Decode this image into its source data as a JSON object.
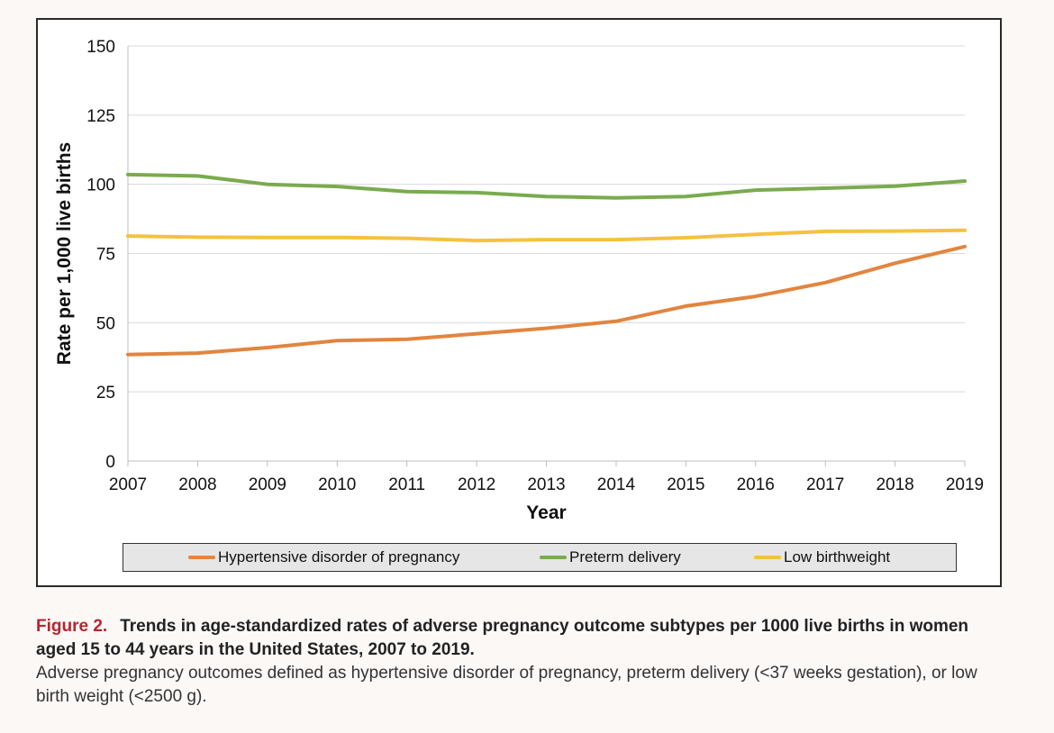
{
  "chart_data": {
    "type": "line",
    "xlabel": "Year",
    "ylabel": "Rate per 1,000 live births",
    "ylim": [
      0,
      150
    ],
    "yticks": [
      0,
      25,
      50,
      75,
      100,
      125,
      150
    ],
    "grid": true,
    "legend_position": "bottom",
    "x": [
      2007,
      2008,
      2009,
      2010,
      2011,
      2012,
      2013,
      2014,
      2015,
      2016,
      2017,
      2018,
      2019
    ],
    "series": [
      {
        "name": "Hypertensive disorder of pregnancy",
        "color": "#e2853f",
        "values": [
          38.5,
          39,
          41,
          43.5,
          44,
          46,
          48,
          50.5,
          56,
          59.5,
          64.5,
          71.5,
          77.5
        ]
      },
      {
        "name": "Preterm delivery",
        "color": "#7aab4f",
        "values": [
          103.5,
          103,
          100,
          99.2,
          97.4,
          97,
          95.6,
          95.1,
          95.6,
          97.9,
          98.6,
          99.3,
          101.2
        ]
      },
      {
        "name": "Low birthweight",
        "color": "#f4c23e",
        "values": [
          81.3,
          80.9,
          80.8,
          80.8,
          80.5,
          79.7,
          80,
          80,
          80.7,
          81.9,
          83,
          83.1,
          83.4
        ]
      }
    ]
  },
  "caption": {
    "label": "Figure 2.",
    "title": "Trends in age-standardized rates of adverse pregnancy outcome subtypes per 1000 live births in women aged 15 to 44 years in the United States, 2007 to 2019.",
    "body": "Adverse pregnancy outcomes defined as hypertensive disorder of pregnancy, preterm delivery (<37 weeks gestation), or low birth weight (<2500 g)."
  }
}
